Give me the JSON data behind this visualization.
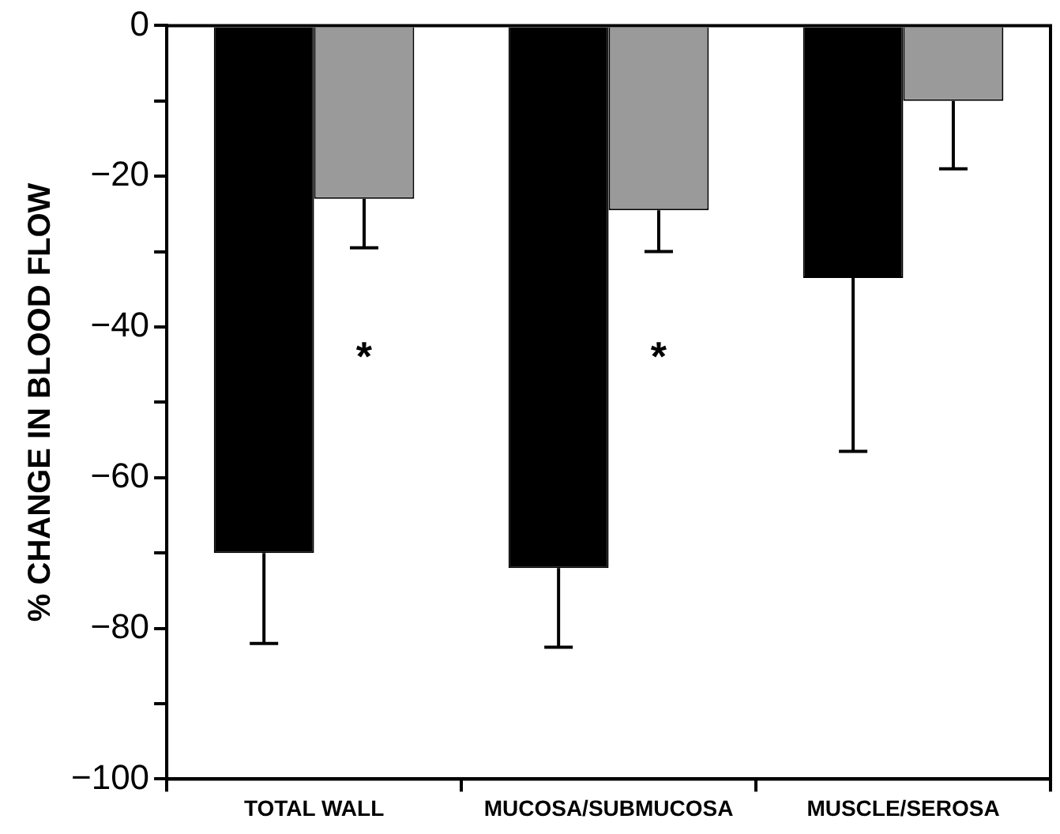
{
  "chart_data": {
    "type": "bar",
    "ylabel": "% CHANGE IN BLOOD FLOW",
    "categories": [
      "TOTAL WALL",
      "MUCOSA/SUBMUCOSA",
      "MUSCLE/SEROSA"
    ],
    "series": [
      {
        "color": "#000000",
        "values": [
          -70,
          -72,
          -33.5
        ],
        "errors": [
          [
            -82,
            -70
          ],
          [
            -82.5,
            -72
          ],
          [
            -56.5,
            -33.5
          ]
        ]
      },
      {
        "color": "#9a9a9a",
        "values": [
          -23,
          -24.5,
          -10
        ],
        "errors": [
          [
            -29.5,
            -23
          ],
          [
            -30,
            -24.5
          ],
          [
            -19,
            -10
          ]
        ]
      }
    ],
    "ylim": [
      -100,
      0
    ],
    "yticks": [
      -100,
      {
        "value": -90,
        "label": null
      },
      -80,
      {
        "value": -70,
        "label": null
      },
      -60,
      {
        "value": -50,
        "label": null
      },
      -40,
      {
        "value": -30,
        "label": null
      },
      -20,
      {
        "value": -10,
        "label": null
      },
      0
    ],
    "grid": false,
    "legend": false,
    "annotations": [
      {
        "text": "*",
        "x": "TOTAL WALL",
        "y": -43
      },
      {
        "text": "*",
        "x": "MUCOSA/SUBMUCOSA",
        "y": -43
      }
    ]
  }
}
